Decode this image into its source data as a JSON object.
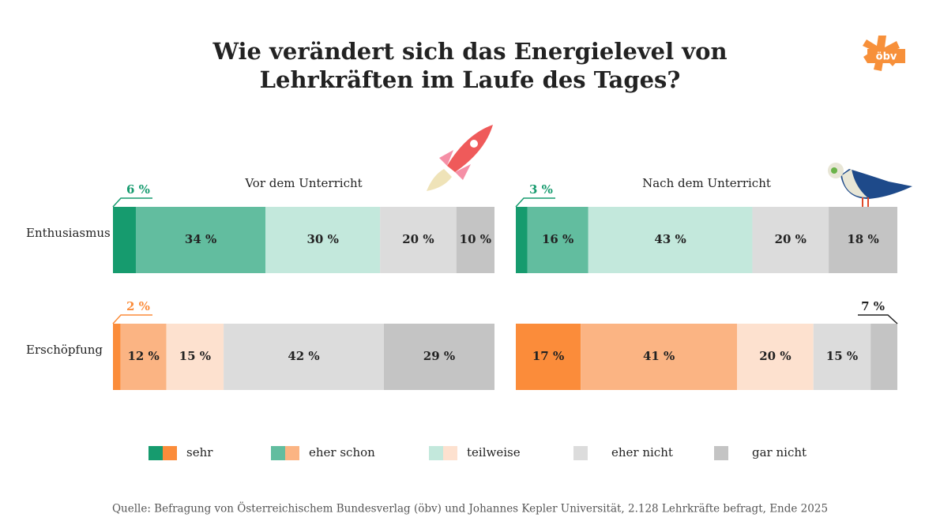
{
  "chart_data": {
    "type": "stacked-bar",
    "title": [
      "Wie verändert sich das Energielevel von",
      "Lehrkräften im Laufe des Tages?"
    ],
    "logo": "öbv",
    "source": "Quelle: Befragung von Österreichischem Bundesverlag (öbv) und Johannes Kepler Universität, 2.128 Lehrkräfte befragt, Ende 2025",
    "panels": [
      "Vor dem Unterricht",
      "Nach dem Unterricht"
    ],
    "categories": [
      "Enthusiasmus",
      "Erschöpfung"
    ],
    "xlim": [
      0,
      100
    ],
    "series": [
      {
        "name": "sehr",
        "colors": [
          "#169b6e",
          "#fb8c3a"
        ],
        "values": [
          [
            6,
            2
          ],
          [
            3,
            17
          ]
        ],
        "value_labels": [
          [
            "6 %",
            "2 %"
          ],
          [
            "3 %",
            "17 %"
          ]
        ]
      },
      {
        "name": "eher schon",
        "colors": [
          "#62bd9f",
          "#fbb483"
        ],
        "values": [
          [
            34,
            12
          ],
          [
            16,
            41
          ]
        ],
        "value_labels": [
          [
            "34 %",
            "12 %"
          ],
          [
            "16 %",
            "41 %"
          ]
        ]
      },
      {
        "name": "teilweise",
        "colors": [
          "#c3e8dc",
          "#fde1cf"
        ],
        "values": [
          [
            30,
            15
          ],
          [
            43,
            20
          ]
        ],
        "value_labels": [
          [
            "30 %",
            "15 %"
          ],
          [
            "43 %",
            "20 %"
          ]
        ]
      },
      {
        "name": "eher nicht",
        "colors": [
          "#dcdcdc",
          "#dcdcdc"
        ],
        "values": [
          [
            20,
            42
          ],
          [
            20,
            15
          ]
        ],
        "value_labels": [
          [
            "20 %",
            "42 %"
          ],
          [
            "20 %",
            "15 %"
          ]
        ]
      },
      {
        "name": "gar nicht",
        "colors": [
          "#c4c4c4",
          "#c4c4c4"
        ],
        "values": [
          [
            10,
            29
          ],
          [
            18,
            7
          ]
        ],
        "value_labels": [
          [
            "10 %",
            "29 %"
          ],
          [
            "18 %",
            "7 %"
          ]
        ]
      }
    ]
  }
}
